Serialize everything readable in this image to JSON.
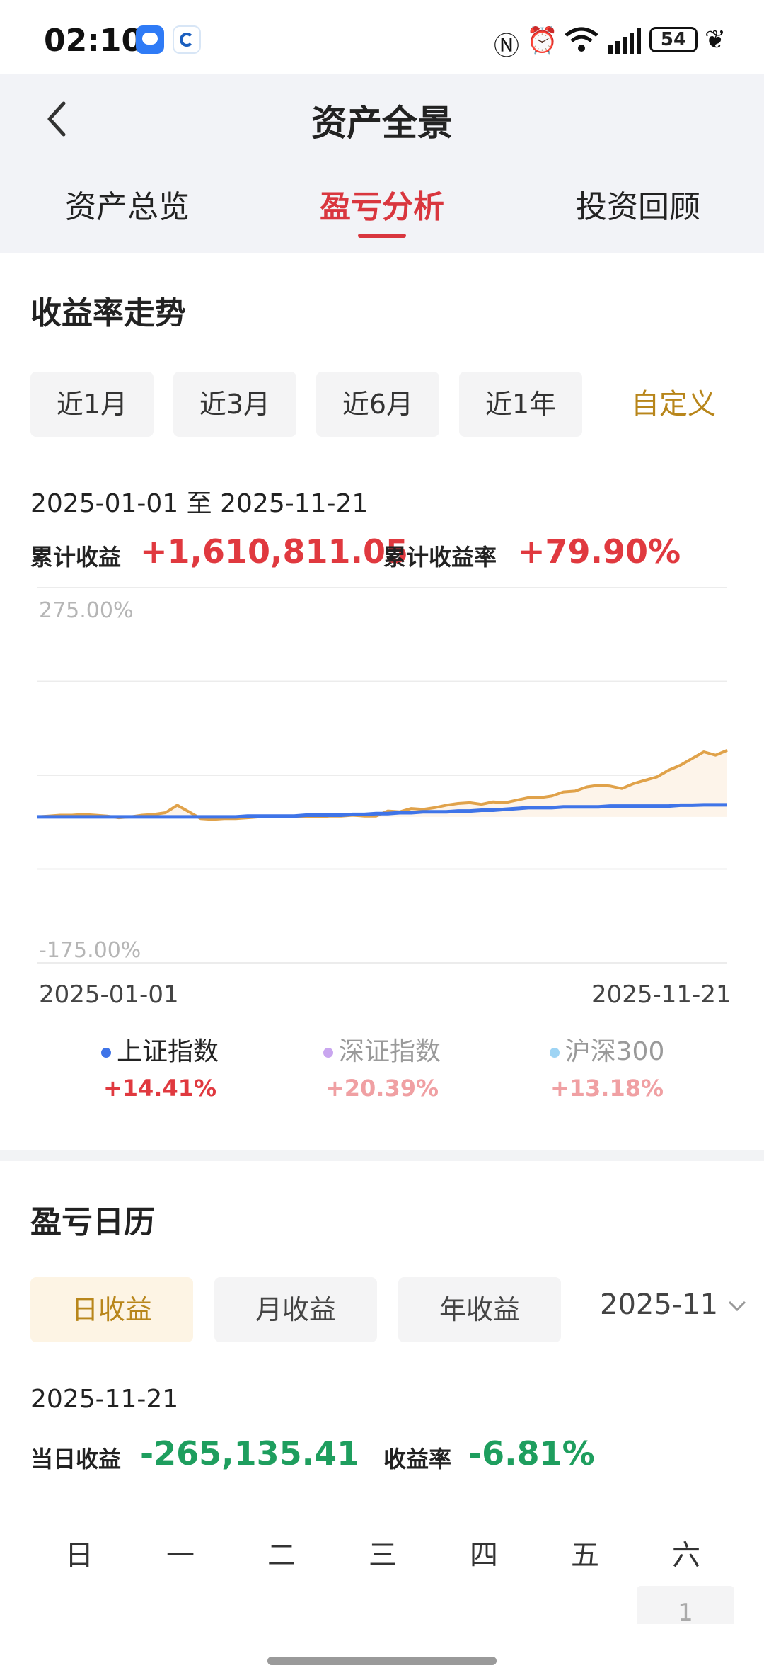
{
  "status_bar": {
    "time": "02:10",
    "battery": "54"
  },
  "header": {
    "title": "资产全景"
  },
  "tabs": [
    {
      "label": "资产总览",
      "active": false
    },
    {
      "label": "盈亏分析",
      "active": true
    },
    {
      "label": "投资回顾",
      "active": false
    }
  ],
  "trend": {
    "title": "收益率走势",
    "periods": [
      "近1月",
      "近3月",
      "近6月",
      "近1年"
    ],
    "custom_label": "自定义",
    "date_range": "2025-01-01 至 2025-11-21",
    "cumulative_label": "累计收益",
    "cumulative_value": "+1,610,811.05",
    "rate_label": "累计收益率",
    "rate_value": "+79.90%"
  },
  "chart_data": {
    "type": "line",
    "ylim_labels": [
      "275.00%",
      "-175.00%"
    ],
    "ylim": [
      -175,
      275
    ],
    "grid": true,
    "x_start": "2025-01-01",
    "x_end": "2025-11-21",
    "series": [
      {
        "color": "#e0a24a",
        "values": [
          0,
          1,
          2,
          2,
          3,
          2,
          1,
          -1,
          0,
          2,
          3,
          5,
          14,
          6,
          -2,
          -3,
          -2,
          -2,
          -1,
          0,
          0,
          0,
          1,
          0,
          0,
          1,
          1,
          2,
          1,
          1,
          7,
          6,
          10,
          9,
          11,
          14,
          16,
          17,
          15,
          18,
          17,
          20,
          23,
          23,
          25,
          30,
          31,
          36,
          38,
          37,
          34,
          40,
          44,
          48,
          56,
          62,
          70,
          78,
          74,
          79.9
        ]
      },
      {
        "name": "上证指数",
        "color": "#3f74e8",
        "values": [
          0,
          0,
          0,
          0,
          0,
          0,
          0,
          0,
          0,
          0,
          0,
          0,
          0,
          0,
          0,
          0,
          0,
          0,
          1,
          1,
          1,
          1,
          1,
          2,
          2,
          2,
          2,
          3,
          3,
          4,
          4,
          5,
          5,
          6,
          6,
          6,
          7,
          7,
          8,
          8,
          9,
          10,
          11,
          11,
          11,
          12,
          12,
          12,
          12,
          13,
          13,
          13,
          13,
          13,
          13,
          14,
          14,
          14.4,
          14.4,
          14.4
        ]
      }
    ],
    "legend": [
      {
        "name": "上证指数",
        "value": "+14.41%",
        "dot_color": "#3f74e8",
        "active": true
      },
      {
        "name": "深证指数",
        "value": "+20.39%",
        "dot_color": "#c9a6ef",
        "active": false
      },
      {
        "name": "沪深300",
        "value": "+13.18%",
        "dot_color": "#9ed4f4",
        "active": false
      }
    ]
  },
  "calendar": {
    "title": "盈亏日历",
    "modes": [
      "日收益",
      "月收益",
      "年收益"
    ],
    "active_mode": "日收益",
    "month": "2025-11",
    "date": "2025-11-21",
    "day_profit_label": "当日收益",
    "day_profit_value": "-265,135.41",
    "day_rate_label": "收益率",
    "day_rate_value": "-6.81%",
    "weekdays": [
      "日",
      "一",
      "二",
      "三",
      "四",
      "五",
      "六"
    ],
    "first_day": "1"
  }
}
